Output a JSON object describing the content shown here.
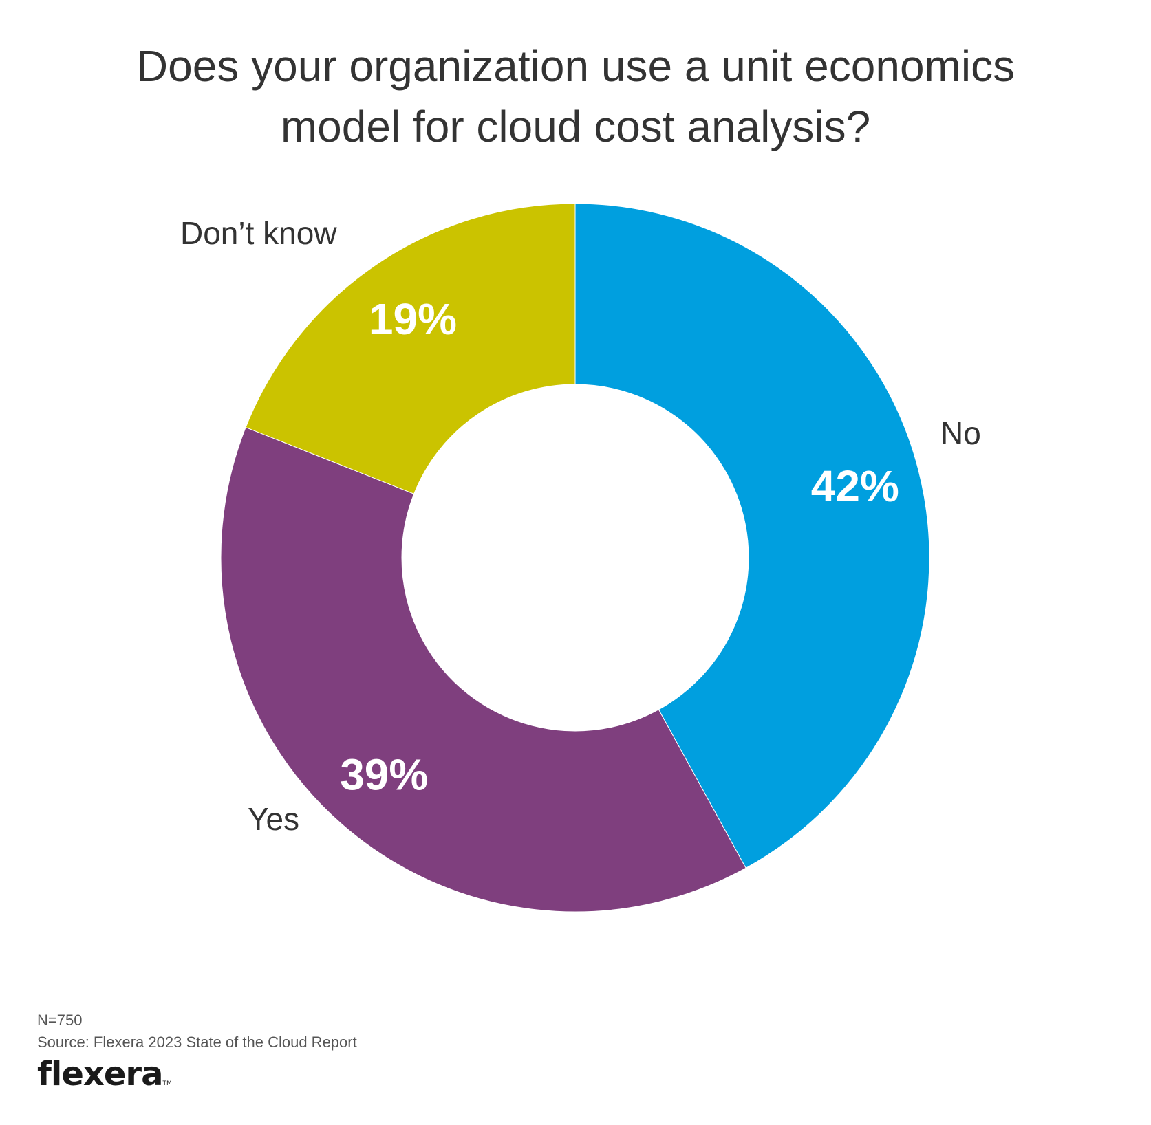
{
  "chart_data": {
    "type": "pie",
    "title_lines": [
      "Does your organization use a unit economics",
      "model for cloud cost analysis?"
    ],
    "slices": [
      {
        "label": "No",
        "value": 42,
        "value_label": "42%",
        "color": "#009fdf"
      },
      {
        "label": "Yes",
        "value": 39,
        "value_label": "39%",
        "color": "#7f3f7e"
      },
      {
        "label": "Don’t know",
        "value": 19,
        "value_label": "19%",
        "color": "#cbc300"
      }
    ],
    "donut": true,
    "start": "top, clockwise"
  },
  "footer": {
    "sample": "N=750",
    "source": "Source: Flexera 2023 State of the Cloud Report"
  },
  "logo": {
    "text": "flexera",
    "tm": "TM"
  }
}
